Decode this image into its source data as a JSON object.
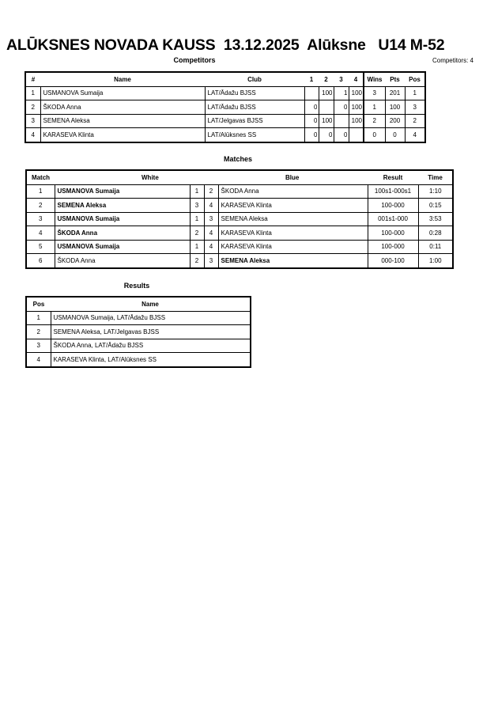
{
  "header": {
    "title": "ALŪKSNES NOVADA KAUSS  13.12.2025  Alūksne   U14 M-52",
    "competitors_heading": "Competitors",
    "competitors_count": "Competitors: 4"
  },
  "competitors": {
    "columns": [
      "#",
      "Name",
      "Club",
      "1",
      "2",
      "3",
      "4",
      "Wins",
      "Pts",
      "Pos"
    ],
    "rows": [
      [
        "1",
        "USMANOVA Sumaija",
        "LAT/Ādažu BJSS",
        "",
        "100",
        "1",
        "100",
        "3",
        "201",
        "1"
      ],
      [
        "2",
        "ŠKODA Anna",
        "LAT/Ādažu BJSS",
        "0",
        "",
        "0",
        "100",
        "1",
        "100",
        "3"
      ],
      [
        "3",
        "SEMENA Aleksa",
        "LAT/Jelgavas BJSS",
        "0",
        "100",
        "",
        "100",
        "2",
        "200",
        "2"
      ],
      [
        "4",
        "KARASEVA Klinta",
        "LAT/Alūksnes SS",
        "0",
        "0",
        "0",
        "",
        "0",
        "0",
        "4"
      ]
    ]
  },
  "matches": {
    "heading": "Matches",
    "columns": [
      "Match",
      "White",
      "Blue",
      "Result",
      "Time"
    ],
    "rows": [
      {
        "no": "1",
        "white": "USMANOVA Sumaija",
        "wn": "1",
        "bn": "2",
        "blue": "ŠKODA Anna",
        "result": "100s1-000s1",
        "time": "1:10",
        "winner": "white"
      },
      {
        "no": "2",
        "white": "SEMENA Aleksa",
        "wn": "3",
        "bn": "4",
        "blue": "KARASEVA Klinta",
        "result": "100-000",
        "time": "0:15",
        "winner": "white"
      },
      {
        "no": "3",
        "white": "USMANOVA Sumaija",
        "wn": "1",
        "bn": "3",
        "blue": "SEMENA Aleksa",
        "result": "001s1-000",
        "time": "3:53",
        "winner": "white"
      },
      {
        "no": "4",
        "white": "ŠKODA Anna",
        "wn": "2",
        "bn": "4",
        "blue": "KARASEVA Klinta",
        "result": "100-000",
        "time": "0:28",
        "winner": "white"
      },
      {
        "no": "5",
        "white": "USMANOVA Sumaija",
        "wn": "1",
        "bn": "4",
        "blue": "KARASEVA Klinta",
        "result": "100-000",
        "time": "0:11",
        "winner": "white"
      },
      {
        "no": "6",
        "white": "ŠKODA Anna",
        "wn": "2",
        "bn": "3",
        "blue": "SEMENA Aleksa",
        "result": "000-100",
        "time": "1:00",
        "winner": "blue"
      }
    ]
  },
  "results": {
    "heading": "Results",
    "columns": [
      "Pos",
      "Name"
    ],
    "rows": [
      [
        "1",
        "USMANOVA Sumaija, LAT/Ādažu BJSS"
      ],
      [
        "2",
        "SEMENA Aleksa, LAT/Jelgavas BJSS"
      ],
      [
        "3",
        "ŠKODA Anna, LAT/Ādažu BJSS"
      ],
      [
        "4",
        "KARASEVA Klinta, LAT/Alūksnes SS"
      ]
    ]
  }
}
